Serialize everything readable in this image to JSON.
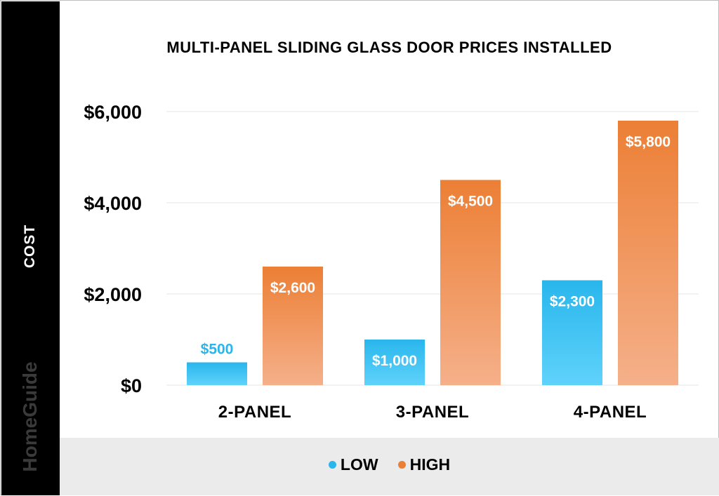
{
  "colors": {
    "low_top": "#29b6ec",
    "low_bottom": "#5fd2fb",
    "high_top": "#ec7f35",
    "high_bottom": "#f5b08a",
    "low_label": "#29b6ec",
    "grid": "#e6e6e6"
  },
  "sidebar": {
    "ylabel": "COST",
    "brand": "HomeGuide"
  },
  "chart_data": {
    "type": "bar",
    "title": "MULTI-PANEL SLIDING GLASS DOOR PRICES INSTALLED",
    "ylabel": "COST",
    "xlabel": "",
    "categories": [
      "2-PANEL",
      "3-PANEL",
      "4-PANEL"
    ],
    "series": [
      {
        "name": "LOW",
        "values": [
          500,
          1000,
          2300
        ],
        "labels": [
          "$500",
          "$1,000",
          "$2,300"
        ]
      },
      {
        "name": "HIGH",
        "values": [
          2600,
          4500,
          5800
        ],
        "labels": [
          "$2,600",
          "$4,500",
          "$5,800"
        ]
      }
    ],
    "ylim": [
      0,
      6000
    ],
    "yticks": [
      0,
      2000,
      4000,
      6000
    ],
    "ytick_labels": [
      "$0",
      "$2,000",
      "$4,000",
      "$6,000"
    ],
    "grid": true,
    "legend_position": "bottom"
  }
}
